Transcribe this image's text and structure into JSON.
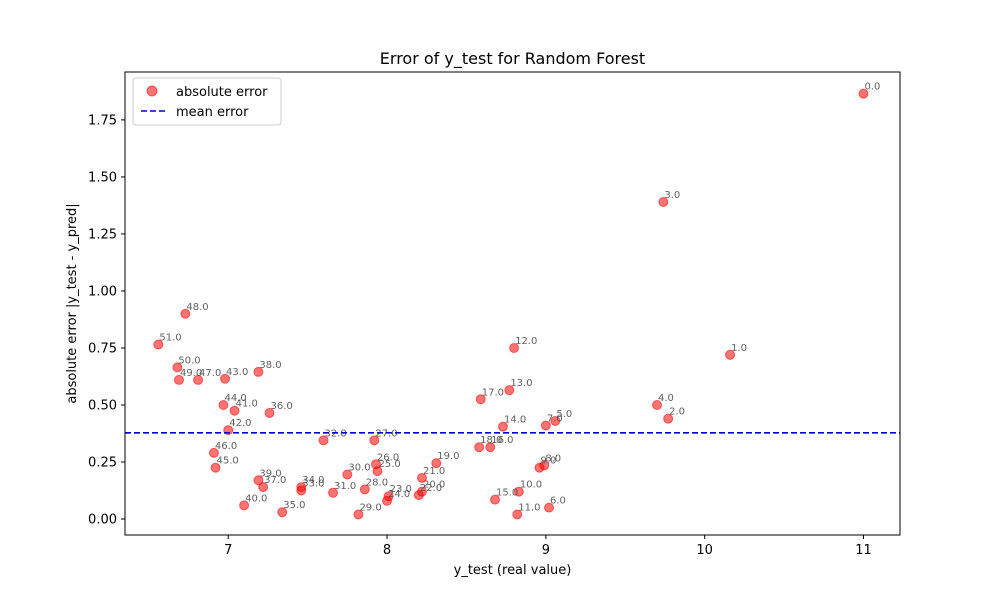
{
  "chart_data": {
    "type": "scatter",
    "title": "Error of y_test for Random Forest",
    "xlabel": "y_test (real value)",
    "ylabel": "absolute error |y_test - y_pred|",
    "xlim": [
      6.35,
      11.23
    ],
    "ylim": [
      -0.07,
      1.96
    ],
    "xticks": [
      7,
      8,
      9,
      10,
      11
    ],
    "yticks": [
      0.0,
      0.25,
      0.5,
      0.75,
      1.0,
      1.25,
      1.5,
      1.75
    ],
    "xtick_labels": [
      "7",
      "8",
      "9",
      "10",
      "11"
    ],
    "ytick_labels": [
      "0.00",
      "0.25",
      "0.50",
      "0.75",
      "1.00",
      "1.25",
      "1.50",
      "1.75"
    ],
    "grid": false,
    "legend_position": "top-left",
    "series": [
      {
        "name": "absolute error",
        "color": "#ff0000",
        "alpha": 0.55,
        "points": [
          {
            "x": 11.0,
            "y": 1.865,
            "label": "0.0"
          },
          {
            "x": 10.16,
            "y": 0.72,
            "label": "1.0"
          },
          {
            "x": 9.77,
            "y": 0.44,
            "label": "2.0"
          },
          {
            "x": 9.74,
            "y": 1.39,
            "label": "3.0"
          },
          {
            "x": 9.7,
            "y": 0.5,
            "label": "4.0"
          },
          {
            "x": 9.06,
            "y": 0.43,
            "label": "5.0"
          },
          {
            "x": 9.02,
            "y": 0.05,
            "label": "6.0"
          },
          {
            "x": 9.0,
            "y": 0.41,
            "label": "7.0"
          },
          {
            "x": 8.99,
            "y": 0.235,
            "label": "8.0"
          },
          {
            "x": 8.96,
            "y": 0.225,
            "label": "9.0"
          },
          {
            "x": 8.83,
            "y": 0.12,
            "label": "10.0"
          },
          {
            "x": 8.82,
            "y": 0.02,
            "label": "11.0"
          },
          {
            "x": 8.8,
            "y": 0.75,
            "label": "12.0"
          },
          {
            "x": 8.77,
            "y": 0.565,
            "label": "13.0"
          },
          {
            "x": 8.73,
            "y": 0.405,
            "label": "14.0"
          },
          {
            "x": 8.68,
            "y": 0.085,
            "label": "15.0"
          },
          {
            "x": 8.65,
            "y": 0.315,
            "label": "16.0"
          },
          {
            "x": 8.59,
            "y": 0.525,
            "label": "17.0"
          },
          {
            "x": 8.58,
            "y": 0.315,
            "label": "18.0"
          },
          {
            "x": 8.31,
            "y": 0.245,
            "label": "19.0"
          },
          {
            "x": 8.22,
            "y": 0.12,
            "label": "20.0"
          },
          {
            "x": 8.22,
            "y": 0.18,
            "label": "21.0"
          },
          {
            "x": 8.2,
            "y": 0.105,
            "label": "22.0"
          },
          {
            "x": 8.01,
            "y": 0.1,
            "label": "23.0"
          },
          {
            "x": 8.0,
            "y": 0.08,
            "label": "24.0"
          },
          {
            "x": 7.94,
            "y": 0.21,
            "label": "25.0"
          },
          {
            "x": 7.93,
            "y": 0.24,
            "label": "26.0"
          },
          {
            "x": 7.92,
            "y": 0.345,
            "label": "27.0"
          },
          {
            "x": 7.86,
            "y": 0.13,
            "label": "28.0"
          },
          {
            "x": 7.82,
            "y": 0.02,
            "label": "29.0"
          },
          {
            "x": 7.75,
            "y": 0.195,
            "label": "30.0"
          },
          {
            "x": 7.66,
            "y": 0.115,
            "label": "31.0"
          },
          {
            "x": 7.6,
            "y": 0.345,
            "label": "32.0"
          },
          {
            "x": 7.46,
            "y": 0.125,
            "label": "33.0"
          },
          {
            "x": 7.46,
            "y": 0.14,
            "label": "34.0"
          },
          {
            "x": 7.34,
            "y": 0.03,
            "label": "35.0"
          },
          {
            "x": 7.26,
            "y": 0.465,
            "label": "36.0"
          },
          {
            "x": 7.22,
            "y": 0.14,
            "label": "37.0"
          },
          {
            "x": 7.19,
            "y": 0.645,
            "label": "38.0"
          },
          {
            "x": 7.19,
            "y": 0.17,
            "label": "39.0"
          },
          {
            "x": 7.1,
            "y": 0.06,
            "label": "40.0"
          },
          {
            "x": 7.04,
            "y": 0.475,
            "label": "41.0"
          },
          {
            "x": 7.0,
            "y": 0.39,
            "label": "42.0"
          },
          {
            "x": 6.98,
            "y": 0.615,
            "label": "43.0"
          },
          {
            "x": 6.97,
            "y": 0.5,
            "label": "44.0"
          },
          {
            "x": 6.92,
            "y": 0.225,
            "label": "45.0"
          },
          {
            "x": 6.91,
            "y": 0.29,
            "label": "46.0"
          },
          {
            "x": 6.81,
            "y": 0.61,
            "label": "47.0"
          },
          {
            "x": 6.73,
            "y": 0.9,
            "label": "48.0"
          },
          {
            "x": 6.69,
            "y": 0.61,
            "label": "49.0"
          },
          {
            "x": 6.68,
            "y": 0.665,
            "label": "50.0"
          },
          {
            "x": 6.56,
            "y": 0.765,
            "label": "51.0"
          }
        ]
      },
      {
        "name": "mean error",
        "type": "hline",
        "y": 0.378,
        "color": "#0000cc",
        "linestyle": "dashed"
      }
    ]
  }
}
